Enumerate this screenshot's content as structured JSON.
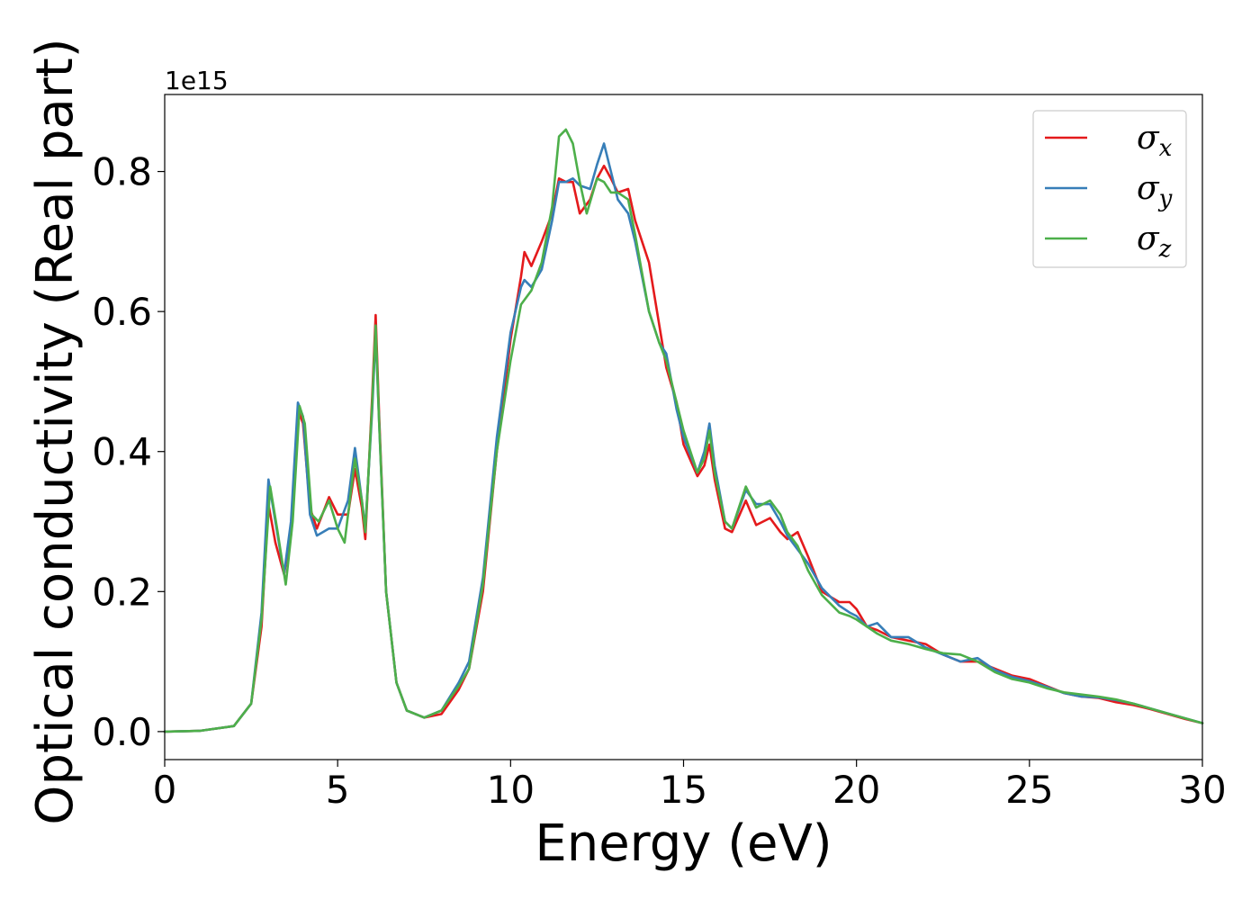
{
  "chart_data": {
    "type": "line",
    "title": "",
    "xlabel": "Energy (eV)",
    "ylabel": "Optical conductivity (Real part)",
    "y_offset_label": "1e15",
    "xlim": [
      0,
      30
    ],
    "ylim": [
      -0.04,
      0.91
    ],
    "x_ticks": [
      0,
      5,
      10,
      15,
      20,
      25,
      30
    ],
    "x_tick_labels": [
      "0",
      "5",
      "10",
      "15",
      "20",
      "25",
      "30"
    ],
    "y_ticks": [
      0.0,
      0.2,
      0.4,
      0.6,
      0.8
    ],
    "y_tick_labels": [
      "0.0",
      "0.2",
      "0.4",
      "0.6",
      "0.8"
    ],
    "grid": false,
    "legend_position": "top-right",
    "series": [
      {
        "name": "σx",
        "base": "σ",
        "sub": "x",
        "color": "#e41a1c",
        "points": [
          [
            0,
            0
          ],
          [
            1,
            0.001
          ],
          [
            2,
            0.008
          ],
          [
            2.5,
            0.04
          ],
          [
            2.8,
            0.15
          ],
          [
            3.0,
            0.325
          ],
          [
            3.2,
            0.27
          ],
          [
            3.45,
            0.225
          ],
          [
            3.65,
            0.28
          ],
          [
            3.85,
            0.46
          ],
          [
            4.0,
            0.44
          ],
          [
            4.2,
            0.32
          ],
          [
            4.4,
            0.29
          ],
          [
            4.75,
            0.335
          ],
          [
            5.0,
            0.31
          ],
          [
            5.3,
            0.31
          ],
          [
            5.5,
            0.375
          ],
          [
            5.7,
            0.32
          ],
          [
            5.8,
            0.275
          ],
          [
            6.0,
            0.48
          ],
          [
            6.1,
            0.595
          ],
          [
            6.2,
            0.45
          ],
          [
            6.4,
            0.2
          ],
          [
            6.7,
            0.07
          ],
          [
            7.0,
            0.03
          ],
          [
            7.5,
            0.02
          ],
          [
            8.0,
            0.025
          ],
          [
            8.5,
            0.06
          ],
          [
            8.8,
            0.09
          ],
          [
            9.2,
            0.2
          ],
          [
            9.6,
            0.4
          ],
          [
            10.0,
            0.56
          ],
          [
            10.3,
            0.65
          ],
          [
            10.4,
            0.685
          ],
          [
            10.6,
            0.665
          ],
          [
            10.9,
            0.7
          ],
          [
            11.2,
            0.74
          ],
          [
            11.4,
            0.79
          ],
          [
            11.6,
            0.785
          ],
          [
            11.8,
            0.785
          ],
          [
            12.0,
            0.74
          ],
          [
            12.3,
            0.76
          ],
          [
            12.5,
            0.79
          ],
          [
            12.7,
            0.808
          ],
          [
            12.9,
            0.79
          ],
          [
            13.1,
            0.77
          ],
          [
            13.4,
            0.775
          ],
          [
            13.6,
            0.73
          ],
          [
            14.0,
            0.67
          ],
          [
            14.3,
            0.58
          ],
          [
            14.5,
            0.52
          ],
          [
            14.8,
            0.47
          ],
          [
            15.0,
            0.41
          ],
          [
            15.4,
            0.365
          ],
          [
            15.6,
            0.38
          ],
          [
            15.75,
            0.41
          ],
          [
            15.9,
            0.36
          ],
          [
            16.2,
            0.29
          ],
          [
            16.4,
            0.285
          ],
          [
            16.8,
            0.33
          ],
          [
            17.1,
            0.295
          ],
          [
            17.5,
            0.305
          ],
          [
            17.8,
            0.285
          ],
          [
            18.0,
            0.275
          ],
          [
            18.3,
            0.285
          ],
          [
            18.6,
            0.25
          ],
          [
            19.0,
            0.2
          ],
          [
            19.5,
            0.185
          ],
          [
            19.8,
            0.185
          ],
          [
            20.0,
            0.175
          ],
          [
            20.3,
            0.15
          ],
          [
            20.6,
            0.145
          ],
          [
            21.0,
            0.135
          ],
          [
            21.5,
            0.13
          ],
          [
            22.0,
            0.125
          ],
          [
            22.5,
            0.11
          ],
          [
            23.0,
            0.1
          ],
          [
            23.5,
            0.1
          ],
          [
            24.0,
            0.09
          ],
          [
            24.5,
            0.08
          ],
          [
            25.0,
            0.075
          ],
          [
            25.5,
            0.065
          ],
          [
            26.0,
            0.055
          ],
          [
            26.5,
            0.05
          ],
          [
            27.0,
            0.048
          ],
          [
            27.5,
            0.042
          ],
          [
            28.0,
            0.038
          ],
          [
            28.5,
            0.032
          ],
          [
            29.0,
            0.025
          ],
          [
            29.5,
            0.018
          ],
          [
            30.0,
            0.012
          ]
        ]
      },
      {
        "name": "σy",
        "base": "σ",
        "sub": "y",
        "color": "#377eb8",
        "points": [
          [
            0,
            0
          ],
          [
            1,
            0.001
          ],
          [
            2,
            0.008
          ],
          [
            2.5,
            0.04
          ],
          [
            2.8,
            0.17
          ],
          [
            3.0,
            0.36
          ],
          [
            3.2,
            0.3
          ],
          [
            3.45,
            0.225
          ],
          [
            3.65,
            0.3
          ],
          [
            3.85,
            0.47
          ],
          [
            4.0,
            0.45
          ],
          [
            4.2,
            0.31
          ],
          [
            4.4,
            0.28
          ],
          [
            4.75,
            0.29
          ],
          [
            5.0,
            0.29
          ],
          [
            5.3,
            0.33
          ],
          [
            5.5,
            0.405
          ],
          [
            5.7,
            0.33
          ],
          [
            5.8,
            0.29
          ],
          [
            6.0,
            0.46
          ],
          [
            6.1,
            0.57
          ],
          [
            6.2,
            0.44
          ],
          [
            6.4,
            0.2
          ],
          [
            6.7,
            0.07
          ],
          [
            7.0,
            0.03
          ],
          [
            7.5,
            0.02
          ],
          [
            8.0,
            0.03
          ],
          [
            8.5,
            0.07
          ],
          [
            8.8,
            0.1
          ],
          [
            9.2,
            0.22
          ],
          [
            9.6,
            0.42
          ],
          [
            10.0,
            0.57
          ],
          [
            10.3,
            0.635
          ],
          [
            10.4,
            0.645
          ],
          [
            10.6,
            0.635
          ],
          [
            10.9,
            0.66
          ],
          [
            11.2,
            0.73
          ],
          [
            11.4,
            0.785
          ],
          [
            11.6,
            0.785
          ],
          [
            11.8,
            0.79
          ],
          [
            12.0,
            0.78
          ],
          [
            12.3,
            0.775
          ],
          [
            12.5,
            0.81
          ],
          [
            12.7,
            0.84
          ],
          [
            12.9,
            0.8
          ],
          [
            13.1,
            0.76
          ],
          [
            13.4,
            0.74
          ],
          [
            13.6,
            0.7
          ],
          [
            14.0,
            0.6
          ],
          [
            14.3,
            0.555
          ],
          [
            14.5,
            0.54
          ],
          [
            14.8,
            0.46
          ],
          [
            15.0,
            0.42
          ],
          [
            15.4,
            0.37
          ],
          [
            15.6,
            0.4
          ],
          [
            15.75,
            0.44
          ],
          [
            15.9,
            0.38
          ],
          [
            16.2,
            0.3
          ],
          [
            16.4,
            0.29
          ],
          [
            16.8,
            0.345
          ],
          [
            17.1,
            0.325
          ],
          [
            17.5,
            0.325
          ],
          [
            17.8,
            0.3
          ],
          [
            18.0,
            0.28
          ],
          [
            18.3,
            0.26
          ],
          [
            18.6,
            0.24
          ],
          [
            19.0,
            0.205
          ],
          [
            19.5,
            0.18
          ],
          [
            19.8,
            0.17
          ],
          [
            20.0,
            0.165
          ],
          [
            20.3,
            0.15
          ],
          [
            20.6,
            0.155
          ],
          [
            21.0,
            0.135
          ],
          [
            21.5,
            0.135
          ],
          [
            22.0,
            0.12
          ],
          [
            22.5,
            0.11
          ],
          [
            23.0,
            0.1
          ],
          [
            23.5,
            0.105
          ],
          [
            24.0,
            0.088
          ],
          [
            24.5,
            0.078
          ],
          [
            25.0,
            0.072
          ],
          [
            25.5,
            0.064
          ],
          [
            26.0,
            0.055
          ],
          [
            26.5,
            0.05
          ],
          [
            27.0,
            0.049
          ],
          [
            27.5,
            0.045
          ],
          [
            28.0,
            0.04
          ],
          [
            28.5,
            0.033
          ],
          [
            29.0,
            0.026
          ],
          [
            29.5,
            0.019
          ],
          [
            30.0,
            0.012
          ]
        ]
      },
      {
        "name": "σz",
        "base": "σ",
        "sub": "z",
        "color": "#4daf4a",
        "points": [
          [
            0,
            0
          ],
          [
            1,
            0.001
          ],
          [
            2,
            0.008
          ],
          [
            2.5,
            0.04
          ],
          [
            2.8,
            0.16
          ],
          [
            3.05,
            0.35
          ],
          [
            3.25,
            0.29
          ],
          [
            3.5,
            0.21
          ],
          [
            3.7,
            0.3
          ],
          [
            3.9,
            0.465
          ],
          [
            4.05,
            0.44
          ],
          [
            4.25,
            0.31
          ],
          [
            4.45,
            0.3
          ],
          [
            4.75,
            0.33
          ],
          [
            5.0,
            0.29
          ],
          [
            5.2,
            0.27
          ],
          [
            5.5,
            0.39
          ],
          [
            5.7,
            0.33
          ],
          [
            5.8,
            0.285
          ],
          [
            6.0,
            0.47
          ],
          [
            6.1,
            0.58
          ],
          [
            6.2,
            0.44
          ],
          [
            6.4,
            0.2
          ],
          [
            6.7,
            0.07
          ],
          [
            7.0,
            0.03
          ],
          [
            7.5,
            0.02
          ],
          [
            8.0,
            0.03
          ],
          [
            8.5,
            0.065
          ],
          [
            8.8,
            0.09
          ],
          [
            9.2,
            0.21
          ],
          [
            9.6,
            0.4
          ],
          [
            10.0,
            0.53
          ],
          [
            10.3,
            0.61
          ],
          [
            10.6,
            0.63
          ],
          [
            10.9,
            0.67
          ],
          [
            11.2,
            0.75
          ],
          [
            11.4,
            0.85
          ],
          [
            11.6,
            0.86
          ],
          [
            11.8,
            0.84
          ],
          [
            12.0,
            0.785
          ],
          [
            12.2,
            0.74
          ],
          [
            12.5,
            0.79
          ],
          [
            12.7,
            0.785
          ],
          [
            12.9,
            0.77
          ],
          [
            13.1,
            0.77
          ],
          [
            13.4,
            0.76
          ],
          [
            13.6,
            0.71
          ],
          [
            14.0,
            0.6
          ],
          [
            14.3,
            0.555
          ],
          [
            14.5,
            0.53
          ],
          [
            14.8,
            0.47
          ],
          [
            15.0,
            0.43
          ],
          [
            15.4,
            0.37
          ],
          [
            15.6,
            0.39
          ],
          [
            15.75,
            0.43
          ],
          [
            15.9,
            0.37
          ],
          [
            16.2,
            0.3
          ],
          [
            16.4,
            0.29
          ],
          [
            16.8,
            0.35
          ],
          [
            17.1,
            0.32
          ],
          [
            17.5,
            0.33
          ],
          [
            17.8,
            0.31
          ],
          [
            18.0,
            0.285
          ],
          [
            18.3,
            0.265
          ],
          [
            18.6,
            0.23
          ],
          [
            19.0,
            0.195
          ],
          [
            19.5,
            0.17
          ],
          [
            19.8,
            0.165
          ],
          [
            20.0,
            0.16
          ],
          [
            20.3,
            0.15
          ],
          [
            20.6,
            0.14
          ],
          [
            21.0,
            0.13
          ],
          [
            21.5,
            0.125
          ],
          [
            22.0,
            0.118
          ],
          [
            22.5,
            0.112
          ],
          [
            23.0,
            0.11
          ],
          [
            23.5,
            0.1
          ],
          [
            24.0,
            0.085
          ],
          [
            24.5,
            0.075
          ],
          [
            25.0,
            0.07
          ],
          [
            25.5,
            0.062
          ],
          [
            26.0,
            0.056
          ],
          [
            26.5,
            0.053
          ],
          [
            27.0,
            0.05
          ],
          [
            27.5,
            0.046
          ],
          [
            28.0,
            0.04
          ],
          [
            28.5,
            0.033
          ],
          [
            29.0,
            0.026
          ],
          [
            29.5,
            0.019
          ],
          [
            30.0,
            0.012
          ]
        ]
      }
    ]
  }
}
